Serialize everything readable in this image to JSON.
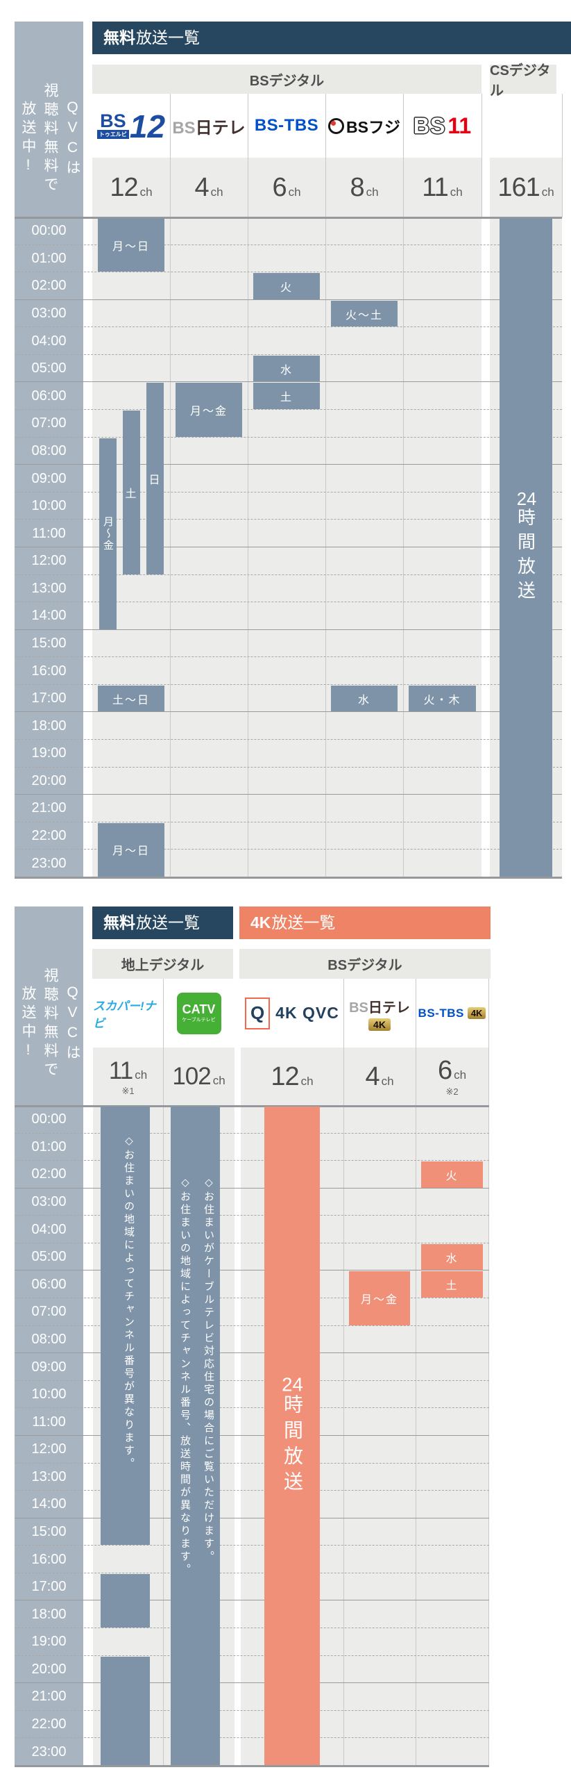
{
  "colors": {
    "navy": "#274760",
    "salmon_header": "#ee8465",
    "salmon_block": "#f19078",
    "slate_block": "#7e93a8",
    "sidebar": "#a8b5c1",
    "cell_bg": "#ecedeb",
    "subheader_bg": "#e9eae6"
  },
  "sidebar": {
    "lines": [
      "QVCは",
      "視聴料無料で",
      "放送中!"
    ]
  },
  "hours": [
    "00:00",
    "01:00",
    "02:00",
    "03:00",
    "04:00",
    "05:00",
    "06:00",
    "07:00",
    "08:00",
    "09:00",
    "10:00",
    "11:00",
    "12:00",
    "13:00",
    "14:00",
    "15:00",
    "16:00",
    "17:00",
    "18:00",
    "19:00",
    "20:00",
    "21:00",
    "22:00",
    "23:00"
  ],
  "tables": [
    {
      "title": {
        "bold": "無料",
        "rest": "放送一覧"
      },
      "sections": [
        {
          "label": "BSデジタル"
        },
        {
          "label": "CSデジタル"
        }
      ],
      "logos": {
        "bs12_bs": "BS",
        "bs12_sub": "トゥエルビ",
        "bs12_num": "12",
        "nittele_bs": "BS",
        "nittele_rest": "日テレ",
        "bstbs": "BS-TBS",
        "fuji": "BSフジ",
        "bs11_bs": "BS",
        "bs11_num": "11"
      },
      "channels": [
        {
          "name": "BS12 トゥエルビ",
          "number": "12",
          "suffix": "ch"
        },
        {
          "name": "BS日テレ",
          "number": "4",
          "suffix": "ch"
        },
        {
          "name": "BS-TBS",
          "number": "6",
          "suffix": "ch"
        },
        {
          "name": "BSフジ",
          "number": "8",
          "suffix": "ch"
        },
        {
          "name": "BS11",
          "number": "11",
          "suffix": "ch"
        },
        {
          "name": "CSデジタル",
          "number": "161",
          "suffix": "ch"
        }
      ],
      "schedule": [
        {
          "col": 0,
          "label": "月〜日",
          "start": 0,
          "end": 2,
          "variant": "full"
        },
        {
          "col": 0,
          "label": "月〜金",
          "start": 8,
          "end": 15,
          "variant": "lane0",
          "vert": true
        },
        {
          "col": 0,
          "label": "土",
          "start": 7,
          "end": 13,
          "variant": "lane1"
        },
        {
          "col": 0,
          "label": "日",
          "start": 6,
          "end": 13,
          "variant": "lane2"
        },
        {
          "col": 0,
          "label": "土〜日",
          "start": 17,
          "end": 18,
          "variant": "full"
        },
        {
          "col": 0,
          "label": "月〜日",
          "start": 22,
          "end": 24,
          "variant": "full"
        },
        {
          "col": 1,
          "label": "月〜金",
          "start": 6,
          "end": 8,
          "variant": "full"
        },
        {
          "col": 2,
          "label": "火",
          "start": 2,
          "end": 3,
          "variant": "full"
        },
        {
          "col": 2,
          "label": "水",
          "start": 5,
          "end": 6,
          "variant": "full"
        },
        {
          "col": 2,
          "label": "土",
          "start": 6,
          "end": 7,
          "variant": "full"
        },
        {
          "col": 3,
          "label": "火〜土",
          "start": 3,
          "end": 4,
          "variant": "full"
        },
        {
          "col": 3,
          "label": "水",
          "start": 17,
          "end": 18,
          "variant": "full"
        },
        {
          "col": 4,
          "label": "火・木",
          "start": 17,
          "end": 18,
          "variant": "full"
        },
        {
          "col": 5,
          "label": "24時間放送",
          "tcy": "24",
          "rest": "時間放送",
          "start": 0,
          "end": 24,
          "variant": "csbar",
          "vert": true
        }
      ]
    },
    {
      "title": {
        "bold": "無料",
        "rest": "放送一覧"
      },
      "title2": {
        "bold": "4K",
        "rest": "放送一覧"
      },
      "sections": [
        {
          "label": "地上デジタル"
        },
        {
          "label": "BSデジタル"
        }
      ],
      "logos": {
        "sukapa": "スカパー!ナビ",
        "catv": "CATV",
        "catv_sub": "ケーブルテレビ",
        "qvc_q": "Q",
        "qvc_text": "4K QVC",
        "nittele_bs": "BS",
        "nittele_rest": "日テレ",
        "nittele_badge": "4K",
        "bstbs": "BS-TBS",
        "bstbs_badge": "4K"
      },
      "channels": [
        {
          "name": "スカパー!ナビ",
          "number": "11",
          "suffix": "ch",
          "note": "※1"
        },
        {
          "name": "CATV ケーブルテレビ",
          "number": "102",
          "suffix": "ch"
        },
        {
          "name": "4K QVC",
          "number": "12",
          "suffix": "ch"
        },
        {
          "name": "BS日テレ 4K",
          "number": "4",
          "suffix": "ch"
        },
        {
          "name": "BS-TBS 4K",
          "number": "6",
          "suffix": "ch",
          "note": "※2"
        }
      ],
      "schedule": [
        {
          "col": 0,
          "lines": [
            "◇お住まいの地域によってチャンネル番号が異なります。"
          ],
          "start": 0,
          "end": 16,
          "variant": "note",
          "pad": 40
        },
        {
          "col": 0,
          "label": "",
          "start": 17,
          "end": 19,
          "variant": "bar"
        },
        {
          "col": 0,
          "label": "",
          "start": 20,
          "end": 24,
          "variant": "bar"
        },
        {
          "col": 1,
          "lines": [
            "◇お住まいがケーブルテレビ対応住宅の場合にご覧いただけます。",
            "◇お住まいの地域によってチャンネル番号、放送時間が異なります。"
          ],
          "start": 0,
          "end": 24,
          "variant": "note",
          "pad": 100
        },
        {
          "col": 2,
          "label": "24時間放送",
          "tcy": "24",
          "rest": "時間放送",
          "start": 0,
          "end": 24,
          "variant": "cbar",
          "vert": true,
          "style": "salmon"
        },
        {
          "col": 3,
          "label": "月〜金",
          "start": 6,
          "end": 8,
          "variant": "full",
          "style": "salmon"
        },
        {
          "col": 4,
          "label": "火",
          "start": 2,
          "end": 3,
          "variant": "full",
          "style": "salmon"
        },
        {
          "col": 4,
          "label": "水",
          "start": 5,
          "end": 6,
          "variant": "full",
          "style": "salmon"
        },
        {
          "col": 4,
          "label": "土",
          "start": 6,
          "end": 7,
          "variant": "full",
          "style": "salmon"
        }
      ]
    }
  ],
  "chart_data": [
    {
      "type": "table",
      "title": "無料放送一覧",
      "columns": [
        "BS12トゥエルビ 12ch",
        "BS日テレ 4ch",
        "BS-TBS 6ch",
        "BSフジ 8ch",
        "BS11 11ch",
        "CSデジタル 161ch"
      ],
      "axis": {
        "unit": "hour",
        "range": [
          "00:00",
          "24:00"
        ],
        "tick_interval": "1:00",
        "solid_line_every": "3:00"
      },
      "entries": [
        {
          "channel": "12ch",
          "days": "月〜日",
          "start": "00:00",
          "end": "02:00"
        },
        {
          "channel": "12ch",
          "days": "日",
          "start": "06:00",
          "end": "13:00"
        },
        {
          "channel": "12ch",
          "days": "土",
          "start": "07:00",
          "end": "13:00"
        },
        {
          "channel": "12ch",
          "days": "月〜金",
          "start": "08:00",
          "end": "15:00"
        },
        {
          "channel": "12ch",
          "days": "土〜日",
          "start": "17:00",
          "end": "18:00"
        },
        {
          "channel": "12ch",
          "days": "月〜日",
          "start": "22:00",
          "end": "24:00"
        },
        {
          "channel": "4ch",
          "days": "月〜金",
          "start": "06:00",
          "end": "08:00"
        },
        {
          "channel": "6ch",
          "days": "火",
          "start": "02:00",
          "end": "03:00"
        },
        {
          "channel": "6ch",
          "days": "水",
          "start": "05:00",
          "end": "06:00"
        },
        {
          "channel": "6ch",
          "days": "土",
          "start": "06:00",
          "end": "07:00"
        },
        {
          "channel": "8ch",
          "days": "火〜土",
          "start": "03:00",
          "end": "04:00"
        },
        {
          "channel": "8ch",
          "days": "水",
          "start": "17:00",
          "end": "18:00"
        },
        {
          "channel": "11ch",
          "days": "火・木",
          "start": "17:00",
          "end": "18:00"
        },
        {
          "channel": "161ch",
          "days": "24時間放送",
          "start": "00:00",
          "end": "24:00"
        }
      ]
    },
    {
      "type": "table",
      "title": "無料放送一覧 / 4K放送一覧",
      "columns": [
        "スカパー!ナビ 11ch ※1",
        "CATV 102ch",
        "4K QVC 12ch",
        "BS日テレ4K 4ch",
        "BS-TBS 4K 6ch ※2"
      ],
      "axis": {
        "unit": "hour",
        "range": [
          "00:00",
          "24:00"
        ],
        "tick_interval": "1:00",
        "solid_line_every": "3:00"
      },
      "entries": [
        {
          "channel": "11ch",
          "start": "00:00",
          "end": "16:00",
          "note": "◇お住まいの地域によってチャンネル番号が異なります。"
        },
        {
          "channel": "11ch",
          "start": "17:00",
          "end": "19:00"
        },
        {
          "channel": "11ch",
          "start": "20:00",
          "end": "24:00"
        },
        {
          "channel": "102ch",
          "start": "00:00",
          "end": "24:00",
          "note": "◇お住まいがケーブルテレビ対応住宅の場合にご覧いただけます。◇お住まいの地域によってチャンネル番号、放送時間が異なります。"
        },
        {
          "channel": "12ch",
          "days": "24時間放送",
          "start": "00:00",
          "end": "24:00"
        },
        {
          "channel": "4ch",
          "days": "月〜金",
          "start": "06:00",
          "end": "08:00"
        },
        {
          "channel": "6ch",
          "days": "火",
          "start": "02:00",
          "end": "03:00"
        },
        {
          "channel": "6ch",
          "days": "水",
          "start": "05:00",
          "end": "06:00"
        },
        {
          "channel": "6ch",
          "days": "土",
          "start": "06:00",
          "end": "07:00"
        }
      ]
    }
  ]
}
